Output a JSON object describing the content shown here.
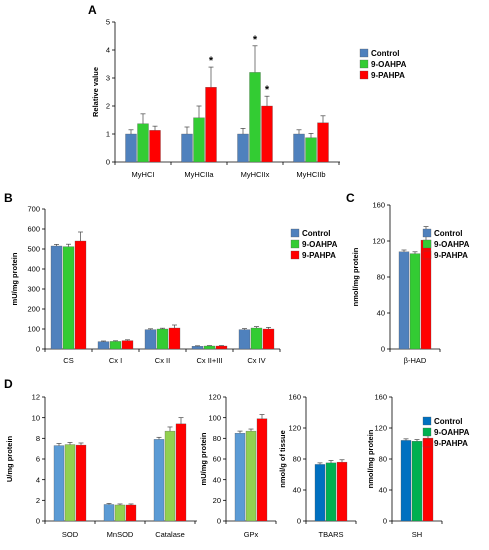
{
  "colors": {
    "control": "#4f81bd",
    "oahpa": "#33cc33",
    "pahpa": "#ff0000",
    "control_light": "#5b9bd5",
    "oahpa_light": "#92d050",
    "control_dark": "#0070c0",
    "oahpa_dark": "#00b050",
    "pahpa_dark": "#ff0000"
  },
  "legend_labels": [
    "Control",
    "9-OAHPA",
    "9-PAHPA"
  ],
  "chart_data": [
    {
      "id": "A",
      "panel_label": "A",
      "type": "bar",
      "ylabel": "Relative value",
      "ylim": [
        0,
        5
      ],
      "yticks": [
        0,
        1,
        2,
        3,
        4,
        5
      ],
      "categories": [
        "MyHCI",
        "MyHCIIa",
        "MyHCIIx",
        "MyHCIIb"
      ],
      "series": [
        {
          "name": "Control",
          "values": [
            1.0,
            1.0,
            1.0,
            1.0
          ],
          "errors": [
            0.15,
            0.25,
            0.2,
            0.15
          ]
        },
        {
          "name": "9-OAHPA",
          "values": [
            1.37,
            1.58,
            3.2,
            0.87
          ],
          "errors": [
            0.35,
            0.42,
            0.95,
            0.15
          ]
        },
        {
          "name": "9-PAHPA",
          "values": [
            1.13,
            2.67,
            2.0,
            1.4
          ],
          "errors": [
            0.15,
            0.72,
            0.35,
            0.25
          ]
        }
      ],
      "annotations": [
        {
          "category": 1,
          "series": 2,
          "text": "*"
        },
        {
          "category": 2,
          "series": 1,
          "text": "*"
        },
        {
          "category": 2,
          "series": 2,
          "text": "*"
        }
      ],
      "legend": "right"
    },
    {
      "id": "B",
      "panel_label": "B",
      "type": "bar",
      "ylabel": "mU/mg protein",
      "ylim": [
        0,
        700
      ],
      "yticks": [
        0,
        100,
        200,
        300,
        400,
        500,
        600,
        700
      ],
      "categories": [
        "CS",
        "Cx I",
        "Cx II",
        "Cx II+III",
        "Cx IV"
      ],
      "series": [
        {
          "name": "Control",
          "values": [
            515,
            37,
            97,
            14,
            97
          ],
          "errors": [
            8,
            3,
            4,
            2,
            5
          ]
        },
        {
          "name": "9-OAHPA",
          "values": [
            512,
            38,
            100,
            15,
            105
          ],
          "errors": [
            12,
            3,
            4,
            2,
            7
          ]
        },
        {
          "name": "9-PAHPA",
          "values": [
            540,
            42,
            105,
            15,
            100
          ],
          "errors": [
            45,
            4,
            15,
            2,
            8
          ]
        }
      ],
      "legend": "top-right"
    },
    {
      "id": "C",
      "panel_label": "C",
      "type": "bar",
      "ylabel": "nmol/mg protein",
      "ylim": [
        0,
        160
      ],
      "yticks": [
        0,
        40,
        80,
        120,
        160
      ],
      "categories": [
        "β-HAD"
      ],
      "series": [
        {
          "name": "Control",
          "values": [
            108
          ],
          "errors": [
            2
          ]
        },
        {
          "name": "9-OAHPA",
          "values": [
            106
          ],
          "errors": [
            2
          ]
        },
        {
          "name": "9-PAHPA",
          "values": [
            121
          ],
          "errors": [
            15
          ]
        }
      ],
      "legend": "top-right"
    },
    {
      "id": "D1",
      "panel_label": "D",
      "type": "bar",
      "ylabel": "U/mg protein",
      "ylim": [
        0,
        12
      ],
      "yticks": [
        0,
        2,
        4,
        6,
        8,
        10,
        12
      ],
      "categories": [
        "SOD",
        "MnSOD",
        "Catalase"
      ],
      "series": [
        {
          "name": "Control",
          "values": [
            7.3,
            1.6,
            7.9
          ],
          "errors": [
            0.2,
            0.1,
            0.2
          ]
        },
        {
          "name": "9-OAHPA",
          "values": [
            7.4,
            1.55,
            8.7
          ],
          "errors": [
            0.2,
            0.1,
            0.4
          ]
        },
        {
          "name": "9-PAHPA",
          "values": [
            7.35,
            1.55,
            9.4
          ],
          "errors": [
            0.2,
            0.1,
            0.6
          ]
        }
      ]
    },
    {
      "id": "D2",
      "panel_label": "",
      "type": "bar",
      "ylabel": "mU/mg protein",
      "ylim": [
        0,
        120
      ],
      "yticks": [
        0,
        20,
        40,
        60,
        80,
        100,
        120
      ],
      "categories": [
        "GPx"
      ],
      "series": [
        {
          "name": "Control",
          "values": [
            85
          ],
          "errors": [
            2
          ]
        },
        {
          "name": "9-OAHPA",
          "values": [
            87
          ],
          "errors": [
            2
          ]
        },
        {
          "name": "9-PAHPA",
          "values": [
            99
          ],
          "errors": [
            4
          ]
        }
      ]
    },
    {
      "id": "D3",
      "panel_label": "",
      "type": "bar",
      "ylabel": "nmol/g of tissue",
      "ylim": [
        0,
        160
      ],
      "yticks": [
        0,
        40,
        80,
        120,
        160
      ],
      "categories": [
        "TBARS"
      ],
      "series": [
        {
          "name": "Control",
          "values": [
            73
          ],
          "errors": [
            2
          ]
        },
        {
          "name": "9-OAHPA",
          "values": [
            75
          ],
          "errors": [
            3
          ]
        },
        {
          "name": "9-PAHPA",
          "values": [
            76
          ],
          "errors": [
            3
          ]
        }
      ]
    },
    {
      "id": "D4",
      "panel_label": "",
      "type": "bar",
      "ylabel": "nmol/mg protein",
      "ylim": [
        0,
        160
      ],
      "yticks": [
        0,
        40,
        80,
        120,
        160
      ],
      "categories": [
        "SH"
      ],
      "series": [
        {
          "name": "Control",
          "values": [
            104
          ],
          "errors": [
            2
          ]
        },
        {
          "name": "9-OAHPA",
          "values": [
            103
          ],
          "errors": [
            2
          ]
        },
        {
          "name": "9-PAHPA",
          "values": [
            107
          ],
          "errors": [
            3
          ]
        }
      ],
      "legend": "top-right"
    }
  ]
}
